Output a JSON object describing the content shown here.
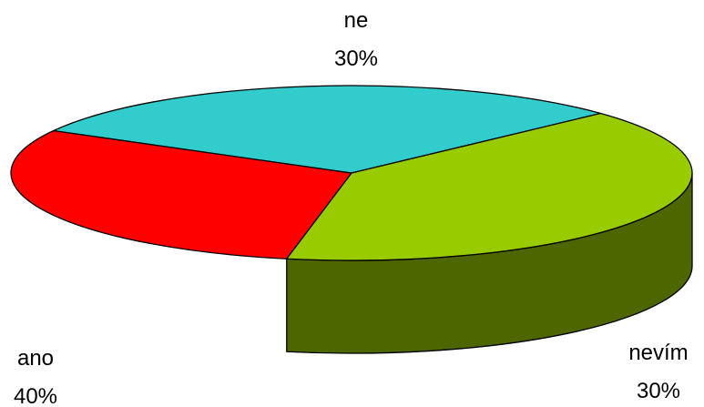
{
  "chart_data": {
    "type": "pie",
    "style": "3d",
    "title": "",
    "legend": "none",
    "slices": [
      {
        "name": "ne",
        "value": 30,
        "label": "30%",
        "color": "#FF0000",
        "side_color": "#B30000"
      },
      {
        "name": "nevím",
        "value": 30,
        "label": "30%",
        "color": "#33CCCC",
        "side_color": "#1C6666"
      },
      {
        "name": "ano",
        "value": 40,
        "label": "40%",
        "color": "#99CC00",
        "side_color": "#4D6600"
      }
    ]
  }
}
